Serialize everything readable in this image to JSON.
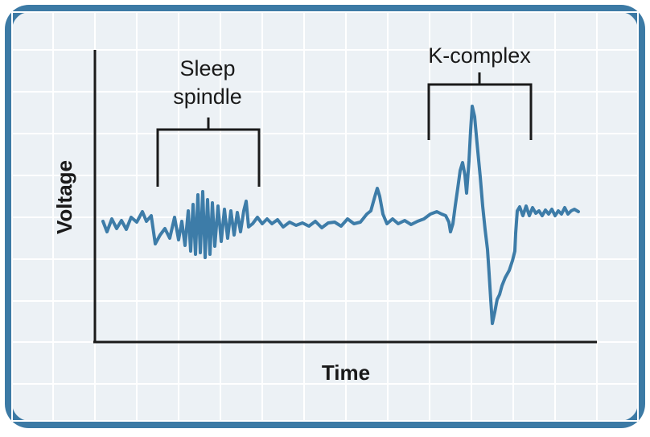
{
  "labels": {
    "sleep_spindle_line1": "Sleep",
    "sleep_spindle_line2": "spindle",
    "k_complex": "K-complex",
    "y_axis": "Voltage",
    "x_axis": "Time"
  },
  "colors": {
    "frame": "#3c7aa5",
    "panel": "#ecf1f5",
    "grid": "#ffffff",
    "trace": "#3d7ca8",
    "axis": "#1a1a1a"
  },
  "icons": {
    "bracket_spindle": "bracket-icon",
    "bracket_kcomplex": "bracket-icon"
  }
}
